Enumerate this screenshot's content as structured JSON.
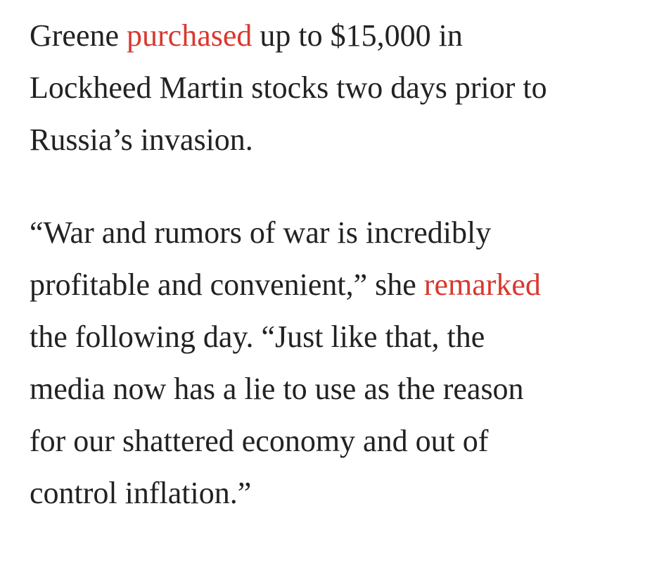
{
  "paragraphs": [
    [
      [
        "Greene ",
        {
          "link": "purchased"
        },
        " up to $15,000 in"
      ],
      [
        "Lockheed Martin stocks two days prior to"
      ],
      [
        "Russia’s invasion."
      ]
    ],
    [
      [
        "“War and rumors of war is incredibly"
      ],
      [
        "profitable and convenient,” she ",
        {
          "link": "remarked"
        }
      ],
      [
        "the following day. “Just like that, the"
      ],
      [
        "media now has a lie to use as the reason"
      ],
      [
        "for our shattered economy and out of"
      ],
      [
        "control inflation.”"
      ]
    ]
  ]
}
